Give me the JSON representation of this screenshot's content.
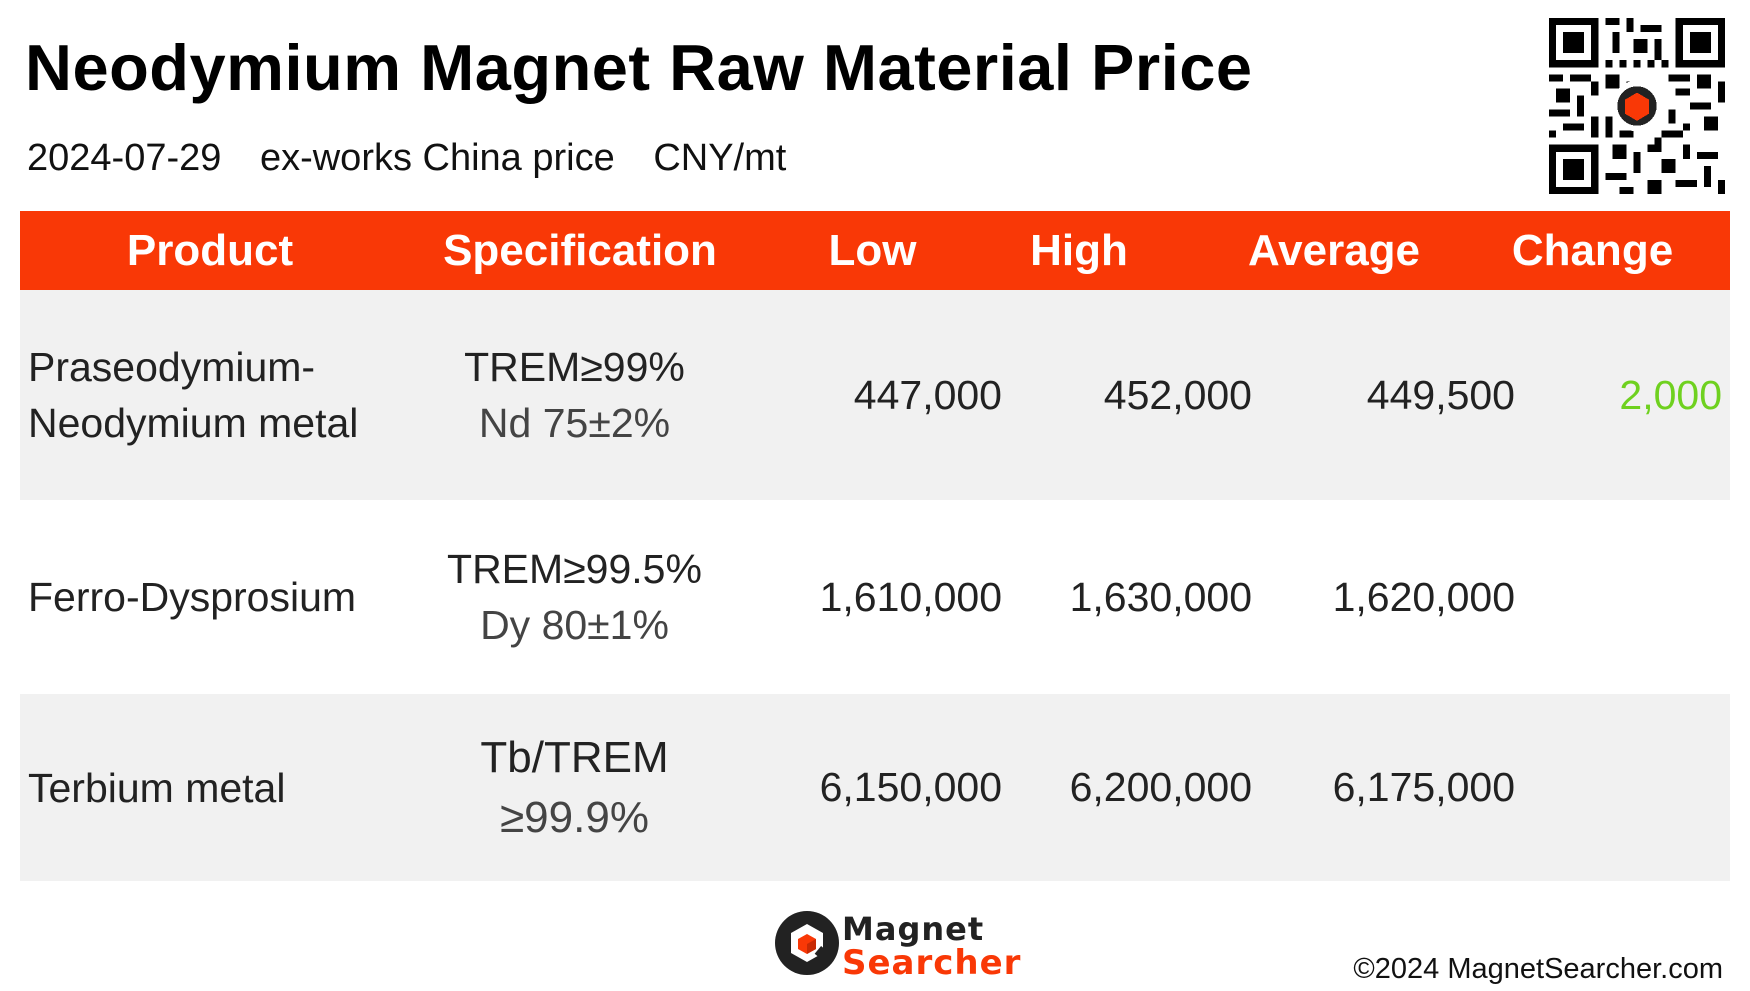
{
  "title": "Neodymium Magnet Raw Material Price",
  "subtitle": {
    "date": "2024-07-29",
    "basis": "ex-works China price",
    "unit": "CNY/mt"
  },
  "colors": {
    "header_bg": "#f93806",
    "row_shade": "#f1f1f1",
    "positive_change": "#6fd11f",
    "brand": "#f93806"
  },
  "table": {
    "headers": [
      "Product",
      "Specification",
      "Low",
      "High",
      "Average",
      "Change"
    ],
    "rows": [
      {
        "product": [
          "Praseodymium-",
          "Neodymium metal"
        ],
        "spec": [
          "TREM≥99%",
          "Nd 75±2%"
        ],
        "low": "447,000",
        "high": "452,000",
        "average": "449,500",
        "change": "2,000"
      },
      {
        "product": [
          "Ferro-Dysprosium"
        ],
        "spec": [
          "TREM≥99.5%",
          "Dy 80±1%"
        ],
        "low": "1,610,000",
        "high": "1,630,000",
        "average": "1,620,000",
        "change": ""
      },
      {
        "product": [
          "Terbium metal"
        ],
        "spec": [
          "Tb/TREM",
          "≥99.9%"
        ],
        "low": "6,150,000",
        "high": "6,200,000",
        "average": "6,175,000",
        "change": ""
      }
    ]
  },
  "brand": {
    "line1": "Magnet",
    "line2": "Searcher",
    "icon": "magnet-searcher-logo-icon"
  },
  "copyright": "©2024 MagnetSearcher.com",
  "qr_icon": "qr-code-icon"
}
